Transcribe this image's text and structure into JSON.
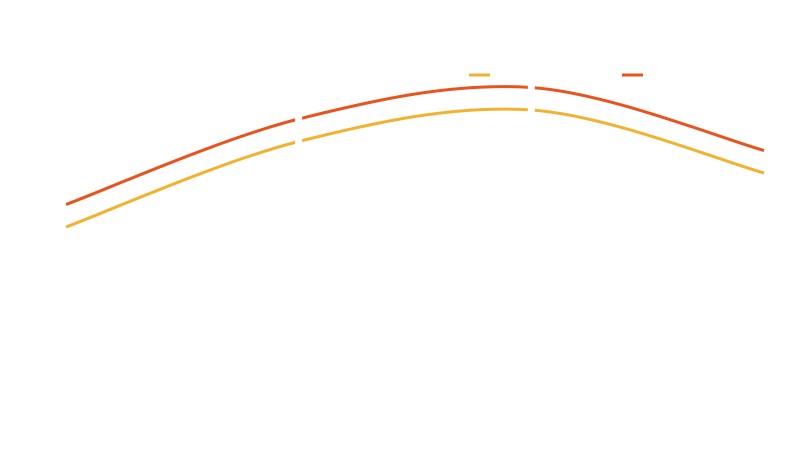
{
  "chart_data": {
    "type": "line",
    "x": [
      0,
      1,
      2,
      3
    ],
    "ylim": [
      0,
      100
    ],
    "grid": false,
    "legend_position": "top-right",
    "series": [
      {
        "color": "#E8541E",
        "values": [
          59,
          78,
          85,
          71
        ],
        "line_width": 3
      },
      {
        "color": "#F2B230",
        "values": [
          54,
          73,
          80,
          66
        ],
        "line_width": 3
      }
    ]
  }
}
